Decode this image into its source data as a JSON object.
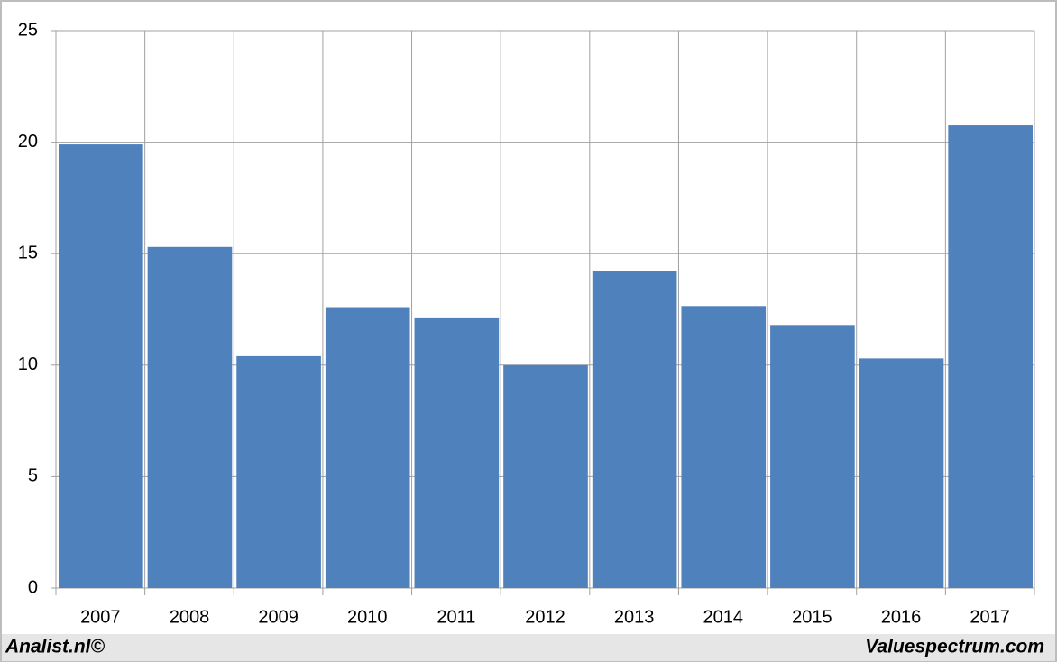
{
  "chart_data": {
    "type": "bar",
    "categories": [
      "2007",
      "2008",
      "2009",
      "2010",
      "2011",
      "2012",
      "2013",
      "2014",
      "2015",
      "2016",
      "2017"
    ],
    "values": [
      19.9,
      15.3,
      10.4,
      12.6,
      12.1,
      10.0,
      14.2,
      12.65,
      11.8,
      10.3,
      20.75
    ],
    "color": "#4f81bd",
    "ylim": [
      0,
      25
    ],
    "yticks": [
      0,
      5,
      10,
      15,
      20,
      25
    ],
    "grid": true,
    "credits": {
      "left": "Analist.nl©",
      "right": "Valuespectrum.com"
    }
  }
}
